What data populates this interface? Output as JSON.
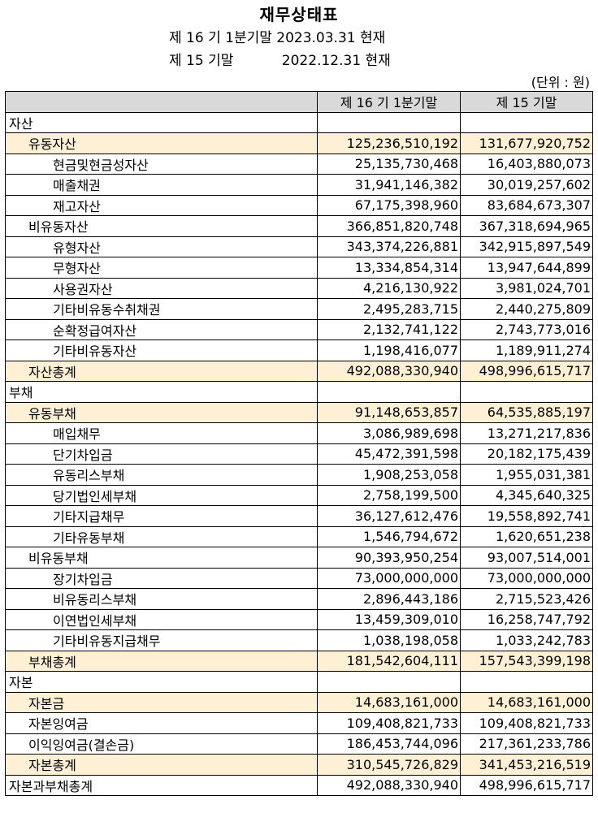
{
  "title": "재무상태표",
  "period_current": "제 16 기 1분기말 2023.03.31 현재",
  "period_prior": "제 15 기말           2022.12.31 현재",
  "unit": "(단위 : 원)",
  "columns": [
    "",
    "제 16 기 1분기말",
    "제 15 기말"
  ],
  "rows": [
    {
      "label": "자산",
      "current": "",
      "prior": "",
      "level": 0,
      "highlight": false
    },
    {
      "label": "유동자산",
      "current": "125,236,510,192",
      "prior": "131,677,920,752",
      "level": 1,
      "highlight": true
    },
    {
      "label": "현금및현금성자산",
      "current": "25,135,730,468",
      "prior": "16,403,880,073",
      "level": 2,
      "highlight": false
    },
    {
      "label": "매출채권",
      "current": "31,941,146,382",
      "prior": "30,019,257,602",
      "level": 2,
      "highlight": false
    },
    {
      "label": "재고자산",
      "current": "67,175,398,960",
      "prior": "83,684,673,307",
      "level": 2,
      "highlight": false
    },
    {
      "label": "비유동자산",
      "current": "366,851,820,748",
      "prior": "367,318,694,965",
      "level": 1,
      "highlight": false
    },
    {
      "label": "유형자산",
      "current": "343,374,226,881",
      "prior": "342,915,897,549",
      "level": 2,
      "highlight": false
    },
    {
      "label": "무형자산",
      "current": "13,334,854,314",
      "prior": "13,947,644,899",
      "level": 2,
      "highlight": false
    },
    {
      "label": "사용권자산",
      "current": "4,216,130,922",
      "prior": "3,981,024,701",
      "level": 2,
      "highlight": false
    },
    {
      "label": "기타비유동수취채권",
      "current": "2,495,283,715",
      "prior": "2,440,275,809",
      "level": 2,
      "highlight": false
    },
    {
      "label": "순확정급여자산",
      "current": "2,132,741,122",
      "prior": "2,743,773,016",
      "level": 2,
      "highlight": false
    },
    {
      "label": "기타비유동자산",
      "current": "1,198,416,077",
      "prior": "1,189,911,274",
      "level": 2,
      "highlight": false
    },
    {
      "label": "자산총계",
      "current": "492,088,330,940",
      "prior": "498,996,615,717",
      "level": 1,
      "highlight": true
    },
    {
      "label": "부채",
      "current": "",
      "prior": "",
      "level": 0,
      "highlight": false
    },
    {
      "label": "유동부채",
      "current": "91,148,653,857",
      "prior": "64,535,885,197",
      "level": 1,
      "highlight": true
    },
    {
      "label": "매입채무",
      "current": "3,086,989,698",
      "prior": "13,271,217,836",
      "level": 2,
      "highlight": false
    },
    {
      "label": "단기차입금",
      "current": "45,472,391,598",
      "prior": "20,182,175,439",
      "level": 2,
      "highlight": false
    },
    {
      "label": "유동리스부채",
      "current": "1,908,253,058",
      "prior": "1,955,031,381",
      "level": 2,
      "highlight": false
    },
    {
      "label": "당기법인세부채",
      "current": "2,758,199,500",
      "prior": "4,345,640,325",
      "level": 2,
      "highlight": false
    },
    {
      "label": "기타지급채무",
      "current": "36,127,612,476",
      "prior": "19,558,892,741",
      "level": 2,
      "highlight": false
    },
    {
      "label": "기타유동부채",
      "current": "1,546,794,672",
      "prior": "1,620,651,238",
      "level": 2,
      "highlight": false
    },
    {
      "label": "비유동부채",
      "current": "90,393,950,254",
      "prior": "93,007,514,001",
      "level": 1,
      "highlight": false
    },
    {
      "label": "장기차입금",
      "current": "73,000,000,000",
      "prior": "73,000,000,000",
      "level": 2,
      "highlight": false
    },
    {
      "label": "비유동리스부채",
      "current": "2,896,443,186",
      "prior": "2,715,523,426",
      "level": 2,
      "highlight": false
    },
    {
      "label": "이연법인세부채",
      "current": "13,459,309,010",
      "prior": "16,258,747,792",
      "level": 2,
      "highlight": false
    },
    {
      "label": "기타비유동지급채무",
      "current": "1,038,198,058",
      "prior": "1,033,242,783",
      "level": 2,
      "highlight": false
    },
    {
      "label": "부채총계",
      "current": "181,542,604,111",
      "prior": "157,543,399,198",
      "level": 1,
      "highlight": true
    },
    {
      "label": "자본",
      "current": "",
      "prior": "",
      "level": 0,
      "highlight": false
    },
    {
      "label": "자본금",
      "current": "14,683,161,000",
      "prior": "14,683,161,000",
      "level": 1,
      "highlight": true
    },
    {
      "label": "자본잉여금",
      "current": "109,408,821,733",
      "prior": "109,408,821,733",
      "level": 1,
      "highlight": false
    },
    {
      "label": "이익잉여금(결손금)",
      "current": "186,453,744,096",
      "prior": "217,361,233,786",
      "level": 1,
      "highlight": false
    },
    {
      "label": "자본총계",
      "current": "310,545,726,829",
      "prior": "341,453,216,519",
      "level": 1,
      "highlight": true
    },
    {
      "label": "자본과부채총계",
      "current": "492,088,330,940",
      "prior": "498,996,615,717",
      "level": 0,
      "highlight": false
    }
  ]
}
